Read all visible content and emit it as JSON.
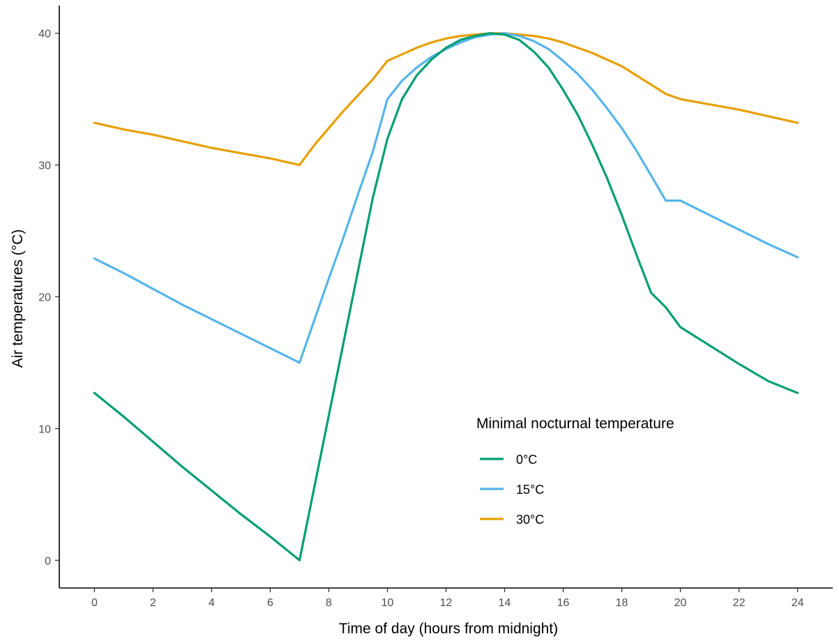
{
  "chart_data": {
    "type": "line",
    "xlabel": "Time of day (hours from midnight)",
    "ylabel": "Air temperatures (°C)",
    "xlim": [
      -1.2,
      25.2
    ],
    "ylim": [
      -2.1,
      42.1
    ],
    "xticks": [
      0,
      2,
      4,
      6,
      8,
      10,
      12,
      14,
      16,
      18,
      20,
      22,
      24
    ],
    "yticks": [
      0,
      10,
      20,
      30,
      40
    ],
    "grid": false,
    "legend": {
      "title": "Minimal nocturnal temperature",
      "placement": "bottom-right"
    },
    "series": [
      {
        "name": "0°C",
        "color": "#009E73",
        "x": [
          0,
          1,
          2,
          3,
          4,
          5,
          6,
          7,
          7.5,
          8,
          8.5,
          9,
          9.5,
          10,
          10.5,
          11,
          11.5,
          12,
          12.5,
          13,
          13.5,
          14,
          14.5,
          15,
          15.5,
          16,
          16.5,
          17,
          17.5,
          18,
          18.5,
          19,
          19.5,
          20,
          21,
          22,
          23,
          24
        ],
        "values": [
          12.7,
          10.9,
          9.0,
          7.1,
          5.3,
          3.5,
          1.8,
          0.0,
          5.5,
          11.0,
          16.5,
          22.0,
          27.5,
          32.0,
          35.0,
          36.8,
          38.0,
          38.9,
          39.5,
          39.8,
          40.0,
          39.9,
          39.5,
          38.6,
          37.4,
          35.7,
          33.8,
          31.5,
          29.0,
          26.2,
          23.2,
          20.3,
          19.2,
          17.7,
          16.3,
          14.9,
          13.6,
          12.7
        ]
      },
      {
        "name": "15°C",
        "color": "#56B4E9",
        "x": [
          0,
          1,
          2,
          3,
          4,
          5,
          6,
          7,
          7.5,
          8,
          8.5,
          9,
          9.5,
          10,
          10.5,
          11,
          11.5,
          12,
          12.5,
          13,
          13.5,
          14,
          14.5,
          15,
          15.5,
          16,
          16.5,
          17,
          17.5,
          18,
          18.5,
          19,
          19.5,
          20,
          21,
          22,
          23,
          24
        ],
        "values": [
          22.9,
          21.8,
          20.6,
          19.4,
          18.3,
          17.2,
          16.1,
          15.0,
          18.2,
          21.4,
          24.5,
          27.8,
          31.0,
          35.0,
          36.4,
          37.4,
          38.2,
          38.8,
          39.3,
          39.7,
          39.9,
          40.0,
          39.8,
          39.4,
          38.8,
          37.9,
          36.9,
          35.7,
          34.3,
          32.8,
          31.1,
          29.2,
          27.3,
          27.3,
          26.2,
          25.1,
          24.0,
          23.0
        ]
      },
      {
        "name": "30°C",
        "color": "#E69F00",
        "x": [
          0,
          1,
          2,
          3,
          4,
          5,
          6,
          7,
          7.5,
          8,
          8.5,
          9,
          9.5,
          10,
          10.5,
          11,
          11.5,
          12,
          12.5,
          13,
          13.5,
          14,
          14.5,
          15,
          15.5,
          16,
          16.5,
          17,
          17.5,
          18,
          18.5,
          19,
          19.5,
          20,
          21,
          22,
          23,
          24
        ],
        "values": [
          33.2,
          32.7,
          32.3,
          31.8,
          31.3,
          30.9,
          30.5,
          30.0,
          31.5,
          32.8,
          34.1,
          35.3,
          36.5,
          37.9,
          38.4,
          38.9,
          39.3,
          39.6,
          39.8,
          39.9,
          40.0,
          40.0,
          39.9,
          39.8,
          39.6,
          39.3,
          38.9,
          38.5,
          38.0,
          37.5,
          36.8,
          36.1,
          35.4,
          35.0,
          34.6,
          34.2,
          33.7,
          33.2
        ]
      }
    ]
  }
}
